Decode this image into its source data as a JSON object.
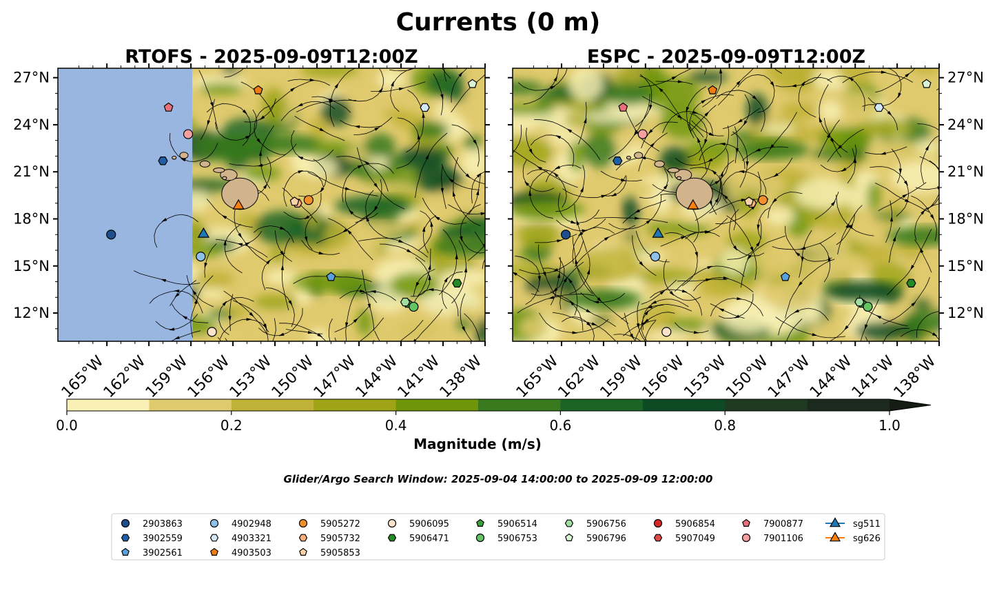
{
  "figure": {
    "suptitle": "Currents (0 m)",
    "search_window": "Glider/Argo Search Window: 2025-09-04 14:00:00 to 2025-09-09 12:00:00"
  },
  "chart_data": [
    {
      "type": "heatmap",
      "title": "RTOFS - 2025-09-09T12:00Z",
      "panel": "left",
      "xlabel": "",
      "ylabel": "",
      "xlim": [
        -168.5,
        -138.0
      ],
      "ylim": [
        10.2,
        27.6
      ],
      "x_ticks": [
        "165°W",
        "162°W",
        "159°W",
        "156°W",
        "153°W",
        "150°W",
        "147°W",
        "144°W",
        "141°W",
        "138°W"
      ],
      "y_ticks": [
        "27°N",
        "24°N",
        "21°N",
        "18°N",
        "15°N",
        "12°N"
      ],
      "no_data_region_lon": [
        -168.5,
        -158.9
      ],
      "field": "current magnitude with streamlines",
      "grid": false
    },
    {
      "type": "heatmap",
      "title": "ESPC - 2025-09-09T12:00Z",
      "panel": "right",
      "xlabel": "",
      "ylabel": "",
      "xlim": [
        -168.5,
        -138.0
      ],
      "ylim": [
        10.2,
        27.6
      ],
      "x_ticks": [
        "165°W",
        "162°W",
        "159°W",
        "156°W",
        "153°W",
        "150°W",
        "147°W",
        "144°W",
        "141°W",
        "138°W"
      ],
      "y_ticks": [
        "27°N",
        "24°N",
        "21°N",
        "18°N",
        "15°N",
        "12°N"
      ],
      "field": "current magnitude with streamlines",
      "grid": false
    }
  ],
  "colorbar": {
    "label": "Magnitude (m/s)",
    "ticks": [
      "0.0",
      "0.2",
      "0.4",
      "0.6",
      "0.8",
      "1.0"
    ],
    "range": [
      0,
      1.0
    ],
    "extend": "max",
    "bins": [
      "#f8f0b4",
      "#e0ca6e",
      "#c0b236",
      "#9ea416",
      "#6f9608",
      "#3a7a1e",
      "#1c6426",
      "#0e4b24",
      "#1e3b22",
      "#1c2a1e"
    ]
  },
  "platforms": [
    {
      "id": "2903863",
      "marker": "circle",
      "color": "#1f4e8c",
      "lon": -164.7,
      "lat": 17.0
    },
    {
      "id": "3902559",
      "marker": "hexagon",
      "color": "#1f5fa8",
      "lon": -161.0,
      "lat": 21.7
    },
    {
      "id": "3902561",
      "marker": "pentagon",
      "color": "#5aa0dc",
      "lon": -149.0,
      "lat": 14.3
    },
    {
      "id": "4902948",
      "marker": "circle",
      "color": "#8fc0e8",
      "lon": -158.3,
      "lat": 15.6
    },
    {
      "id": "4903321",
      "marker": "hexagon",
      "color": "#d2e8f8",
      "lon": -142.3,
      "lat": 25.1
    },
    {
      "id": "4903503",
      "marker": "pentagon",
      "color": "#f07d12",
      "lon": -154.2,
      "lat": 26.2
    },
    {
      "id": "5905272",
      "marker": "circle",
      "color": "#f3902e",
      "lon": -150.6,
      "lat": 19.2
    },
    {
      "id": "5905732",
      "marker": "hexagon",
      "color": "#fab07a",
      "lon": -151.4,
      "lat": 19.0
    },
    {
      "id": "5905853",
      "marker": "pentagon",
      "color": "#fcd2a8",
      "lon": -151.6,
      "lat": 19.1
    },
    {
      "id": "5906095",
      "marker": "circle",
      "color": "#fde3cc",
      "lon": -157.5,
      "lat": 10.8
    },
    {
      "id": "5906471",
      "marker": "hexagon",
      "color": "#248a24",
      "lon": -140.0,
      "lat": 13.9
    },
    {
      "id": "5906514",
      "marker": "pentagon",
      "color": "#3aa03a",
      "lon": -143.5,
      "lat": 12.6
    },
    {
      "id": "5906753",
      "marker": "circle",
      "color": "#64c464",
      "lon": -143.1,
      "lat": 12.4
    },
    {
      "id": "5906756",
      "marker": "hexagon",
      "color": "#a2dea0",
      "lon": -143.7,
      "lat": 12.7
    },
    {
      "id": "5906796",
      "marker": "pentagon",
      "color": "#d8f4d4",
      "lon": -138.9,
      "lat": 26.6
    },
    {
      "id": "5906854",
      "marker": "circle",
      "color": "#d62728",
      "lon": null,
      "lat": null
    },
    {
      "id": "5907049",
      "marker": "hexagon",
      "color": "#e04848",
      "lon": null,
      "lat": null
    },
    {
      "id": "7900877",
      "marker": "pentagon",
      "color": "#e8707a",
      "lon": -160.6,
      "lat": 25.1
    },
    {
      "id": "7901106",
      "marker": "circle",
      "color": "#f4a0a0",
      "lon": -159.2,
      "lat": 23.4
    },
    {
      "id": "sg511",
      "marker": "triangle",
      "color": "#1f77b4",
      "lon": -158.1,
      "lat": 17.1
    },
    {
      "id": "sg626",
      "marker": "triangle",
      "color": "#ff7f0e",
      "lon": -155.6,
      "lat": 18.9
    }
  ],
  "legend": {
    "placement": "bottom-center",
    "columns": [
      [
        "2903863",
        "3902559",
        "3902561"
      ],
      [
        "4902948",
        "4903321",
        "4903503"
      ],
      [
        "5905272",
        "5905732",
        "5905853"
      ],
      [
        "5906095",
        "5906471"
      ],
      [
        "5906514",
        "5906753"
      ],
      [
        "5906756",
        "5906796"
      ],
      [
        "5906854",
        "5907049"
      ],
      [
        "7900877",
        "7901106"
      ],
      [
        "sg511",
        "sg626"
      ]
    ]
  },
  "colors": {
    "land": "#d2b48c",
    "no_data": "#99b6e0",
    "streamline": "#000000"
  }
}
